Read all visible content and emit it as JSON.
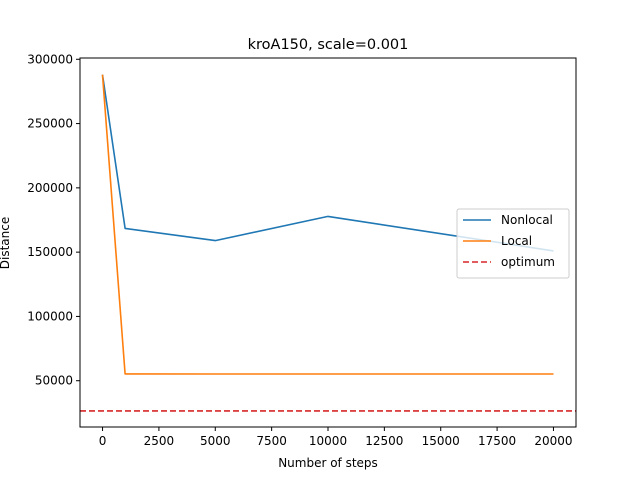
{
  "chart_data": {
    "type": "line",
    "title": "kroA150, scale=0.001",
    "xlabel": "Number of steps",
    "ylabel": "Distance",
    "xlim": [
      -1000,
      21000
    ],
    "ylim": [
      14000,
      301000
    ],
    "xticks": [
      0,
      2500,
      5000,
      7500,
      10000,
      12500,
      15000,
      17500,
      20000
    ],
    "yticks": [
      50000,
      100000,
      150000,
      200000,
      250000,
      300000
    ],
    "grid": false,
    "legend_position": "center-right",
    "series": [
      {
        "name": "Nonlocal",
        "color": "#1f77b4",
        "style": "solid",
        "x": [
          0,
          1000,
          5000,
          10000,
          20000
        ],
        "y": [
          288000,
          168500,
          159000,
          177800,
          151000
        ]
      },
      {
        "name": "Local",
        "color": "#ff7f0e",
        "style": "solid",
        "x": [
          0,
          1000,
          5000,
          10000,
          20000
        ],
        "y": [
          288000,
          55300,
          55200,
          55200,
          55200
        ]
      }
    ],
    "reference_lines": [
      {
        "name": "optimum",
        "color": "#d62728",
        "style": "dashed",
        "y": 26524
      }
    ]
  }
}
